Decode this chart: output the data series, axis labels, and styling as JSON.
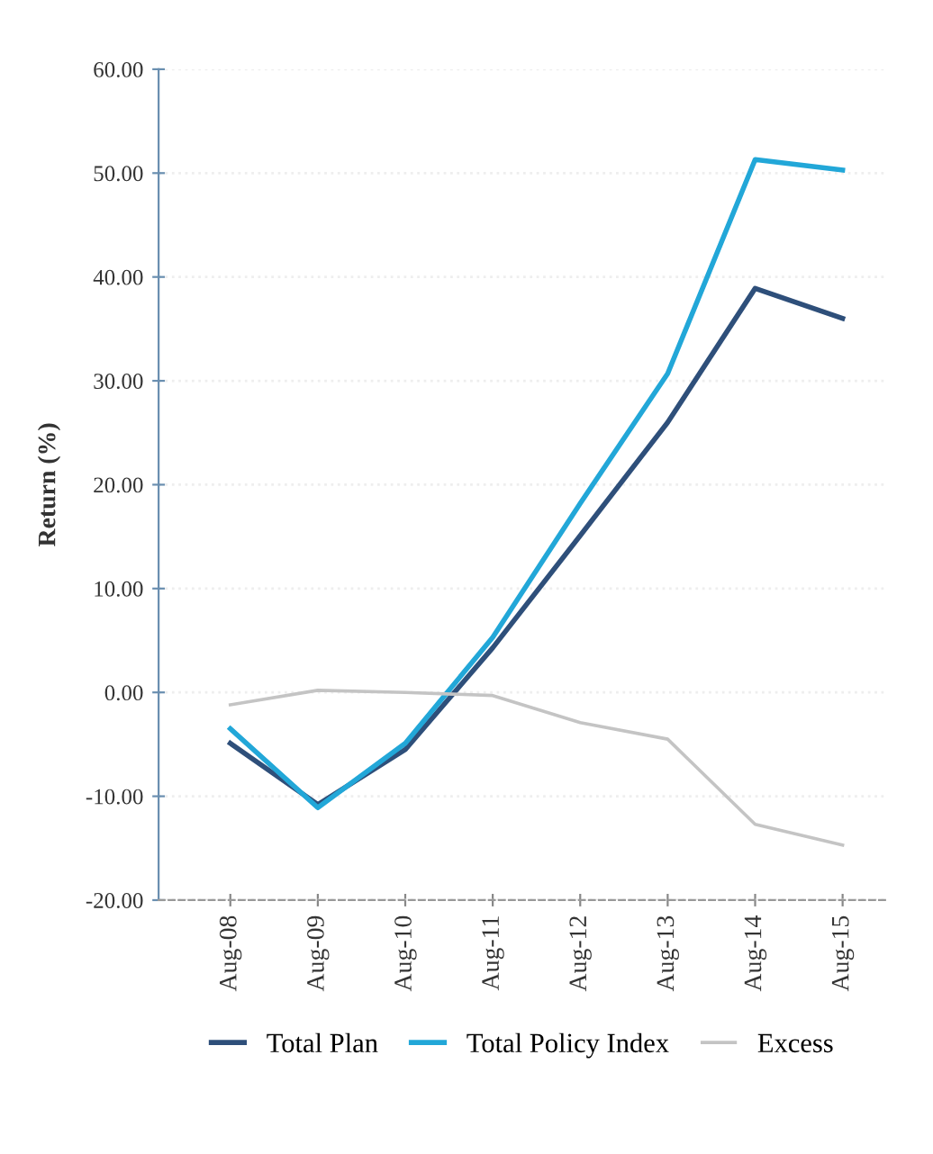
{
  "chart_data": {
    "type": "line",
    "ylabel": "Return (%)",
    "categories": [
      "Aug-08",
      "Aug-09",
      "Aug-10",
      "Aug-11",
      "Aug-12",
      "Aug-13",
      "Aug-14",
      "Aug-15"
    ],
    "series": [
      {
        "name": "Total Plan",
        "color": "#2e4f7a",
        "values": [
          -4.9,
          -10.8,
          -5.5,
          4.3,
          15.1,
          26.0,
          38.9,
          36.0
        ]
      },
      {
        "name": "Total Policy Index",
        "color": "#22a7d8",
        "values": [
          -3.5,
          -11.1,
          -4.9,
          5.3,
          18.2,
          30.7,
          51.3,
          50.3
        ]
      },
      {
        "name": "Excess",
        "color": "#c4c4c4",
        "values": [
          -1.2,
          0.2,
          0.0,
          -0.3,
          -2.9,
          -4.5,
          -12.7,
          -14.7
        ]
      }
    ],
    "ylim": [
      -20,
      60
    ],
    "yticks": [
      {
        "value": 60,
        "label": "60.00"
      },
      {
        "value": 50,
        "label": "50.00"
      },
      {
        "value": 40,
        "label": "40.00"
      },
      {
        "value": 30,
        "label": "30.00"
      },
      {
        "value": 20,
        "label": "20.00"
      },
      {
        "value": 10,
        "label": "10.00"
      },
      {
        "value": 0,
        "label": "0.00"
      },
      {
        "value": -10,
        "label": "-10.00"
      },
      {
        "value": -20,
        "label": "-20.00"
      }
    ],
    "grid": "y",
    "legend": "bottom",
    "marker": "none",
    "line_style": "solid"
  }
}
